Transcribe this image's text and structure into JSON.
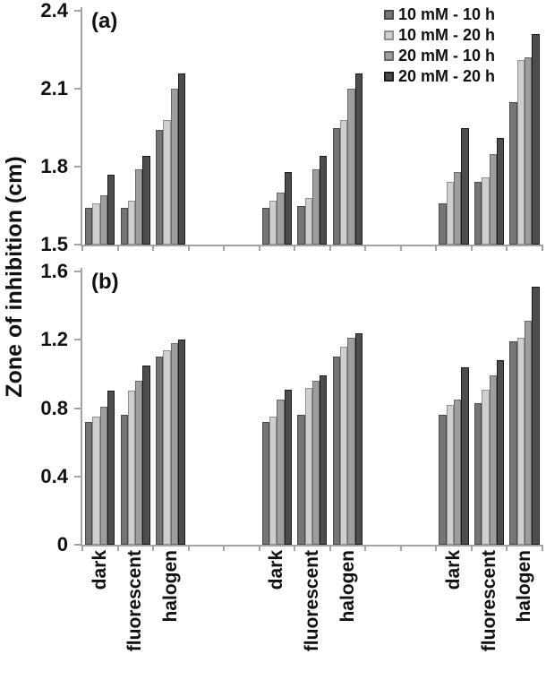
{
  "ylabel": "Zone of inhibition (cm)",
  "legend": {
    "position": "top-right",
    "entries": [
      {
        "label": "10 mM - 10 h",
        "color": "#757575",
        "border": "#4a4a4a"
      },
      {
        "label": "10 mM - 20 h",
        "color": "#cfcfcf",
        "border": "#909090"
      },
      {
        "label": "20 mM - 10 h",
        "color": "#9e9e9e",
        "border": "#6a6a6a"
      },
      {
        "label": "20 mM - 20 h",
        "color": "#4d4d4d",
        "border": "#1c1c1c"
      }
    ]
  },
  "x_axis": {
    "cluster_count": 3,
    "categories_per_cluster": [
      "dark",
      "fluorescent",
      "halogen"
    ],
    "axis_color": "#a3a3a3"
  },
  "chart_data": [
    {
      "type": "bar",
      "panel_label": "(a)",
      "title": "",
      "xlabel": "",
      "ylabel": "Zone of inhibition (cm)",
      "ylim": [
        1.5,
        2.4
      ],
      "yticks": [
        1.5,
        1.8,
        2.1,
        2.4
      ],
      "ytick_labels": [
        "1.5",
        "1.8",
        "2.1",
        "2.4"
      ],
      "grid": false,
      "legend_position": "top-right",
      "categories": [
        "dark",
        "fluorescent",
        "halogen",
        "dark",
        "fluorescent",
        "halogen",
        "dark",
        "fluorescent",
        "halogen"
      ],
      "series": [
        {
          "name": "10 mM - 10 h",
          "values": [
            1.64,
            1.64,
            1.94,
            1.64,
            1.65,
            1.95,
            1.66,
            1.74,
            2.05
          ]
        },
        {
          "name": "10 mM - 20 h",
          "values": [
            1.66,
            1.67,
            1.98,
            1.67,
            1.68,
            1.98,
            1.74,
            1.76,
            2.21
          ]
        },
        {
          "name": "20 mM - 10 h",
          "values": [
            1.69,
            1.79,
            2.1,
            1.7,
            1.79,
            2.1,
            1.78,
            1.85,
            2.22
          ]
        },
        {
          "name": "20 mM - 20 h",
          "values": [
            1.77,
            1.84,
            2.16,
            1.78,
            1.84,
            2.16,
            1.95,
            1.91,
            2.31
          ]
        }
      ]
    },
    {
      "type": "bar",
      "panel_label": "(b)",
      "title": "",
      "xlabel": "",
      "ylabel": "Zone of inhibition (cm)",
      "ylim": [
        0,
        1.6
      ],
      "yticks": [
        0,
        0.4,
        0.8,
        1.2,
        1.6
      ],
      "ytick_labels": [
        "0",
        "0.4",
        "0.8",
        "1.2",
        "1.6"
      ],
      "grid": false,
      "legend_position": "none",
      "categories": [
        "dark",
        "fluorescent",
        "halogen",
        "dark",
        "fluorescent",
        "halogen",
        "dark",
        "fluorescent",
        "halogen"
      ],
      "series": [
        {
          "name": "10 mM - 10 h",
          "values": [
            0.72,
            0.76,
            1.1,
            0.72,
            0.76,
            1.1,
            0.76,
            0.83,
            1.19
          ]
        },
        {
          "name": "10 mM - 20 h",
          "values": [
            0.75,
            0.9,
            1.14,
            0.75,
            0.92,
            1.16,
            0.82,
            0.91,
            1.21
          ]
        },
        {
          "name": "20 mM - 10 h",
          "values": [
            0.81,
            0.96,
            1.18,
            0.85,
            0.96,
            1.21,
            0.85,
            0.99,
            1.31
          ]
        },
        {
          "name": "20 mM - 20 h",
          "values": [
            0.9,
            1.05,
            1.2,
            0.91,
            0.99,
            1.24,
            1.04,
            1.08,
            1.51
          ]
        }
      ]
    }
  ]
}
